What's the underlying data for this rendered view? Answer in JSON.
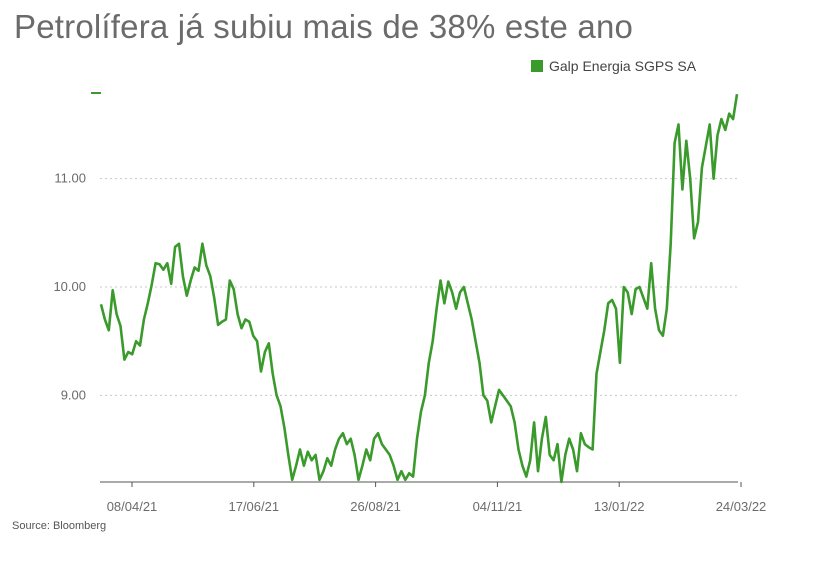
{
  "title": "Petrolífera já subiu mais de 38% este ano",
  "source": "Source: Bloomberg",
  "colors": {
    "line": "#3a9a2b",
    "grid": "#c8c8c8",
    "axis": "#555555",
    "text": "#6b6b6b"
  },
  "chart_data": {
    "type": "line",
    "title": "Petrolífera já subiu mais de 38% este ano",
    "xlabel": "",
    "ylabel": "",
    "ylim": [
      8.2,
      11.8
    ],
    "grid": true,
    "legend_position": "top-right",
    "y_ticks": [
      {
        "value": 9.0,
        "label": "9.00"
      },
      {
        "value": 10.0,
        "label": "10.00"
      },
      {
        "value": 11.0,
        "label": "11.00"
      }
    ],
    "x_tick_labels": [
      "08/04/21",
      "17/06/21",
      "26/08/21",
      "04/11/21",
      "13/01/22",
      "24/03/22"
    ],
    "series": [
      {
        "name": "Galp Energia SGPS SA",
        "color": "#3a9a2b",
        "values": [
          9.84,
          9.7,
          9.6,
          9.97,
          9.75,
          9.64,
          9.33,
          9.4,
          9.38,
          9.5,
          9.46,
          9.7,
          9.85,
          10.02,
          10.22,
          10.21,
          10.16,
          10.22,
          10.03,
          10.37,
          10.4,
          10.1,
          9.92,
          10.06,
          10.18,
          10.15,
          10.4,
          10.2,
          10.1,
          9.9,
          9.65,
          9.68,
          9.7,
          10.06,
          9.98,
          9.75,
          9.62,
          9.7,
          9.68,
          9.55,
          9.5,
          9.22,
          9.4,
          9.48,
          9.2,
          9.0,
          8.9,
          8.7,
          8.45,
          8.22,
          8.35,
          8.5,
          8.35,
          8.48,
          8.4,
          8.45,
          8.22,
          8.3,
          8.42,
          8.35,
          8.5,
          8.6,
          8.65,
          8.55,
          8.6,
          8.45,
          8.22,
          8.35,
          8.5,
          8.4,
          8.6,
          8.65,
          8.55,
          8.5,
          8.45,
          8.35,
          8.22,
          8.3,
          8.22,
          8.28,
          8.25,
          8.6,
          8.85,
          9.0,
          9.3,
          9.5,
          9.8,
          10.06,
          9.85,
          10.05,
          9.95,
          9.8,
          9.95,
          10.0,
          9.85,
          9.7,
          9.5,
          9.3,
          9.0,
          8.95,
          8.75,
          8.9,
          9.05,
          9.0,
          8.95,
          8.9,
          8.75,
          8.5,
          8.35,
          8.25,
          8.4,
          8.75,
          8.3,
          8.6,
          8.8,
          8.45,
          8.4,
          8.55,
          8.2,
          8.45,
          8.6,
          8.5,
          8.3,
          8.65,
          8.55,
          8.52,
          8.5,
          9.2,
          9.4,
          9.6,
          9.85,
          9.88,
          9.8,
          9.3,
          10.0,
          9.95,
          9.75,
          9.98,
          10.0,
          9.9,
          9.8,
          10.22,
          9.8,
          9.6,
          9.55,
          9.8,
          10.4,
          11.33,
          11.5,
          10.9,
          11.35,
          11.0,
          10.45,
          10.6,
          11.1,
          11.3,
          11.5,
          11.0,
          11.4,
          11.55,
          11.45,
          11.6,
          11.55,
          11.78
        ]
      }
    ]
  }
}
